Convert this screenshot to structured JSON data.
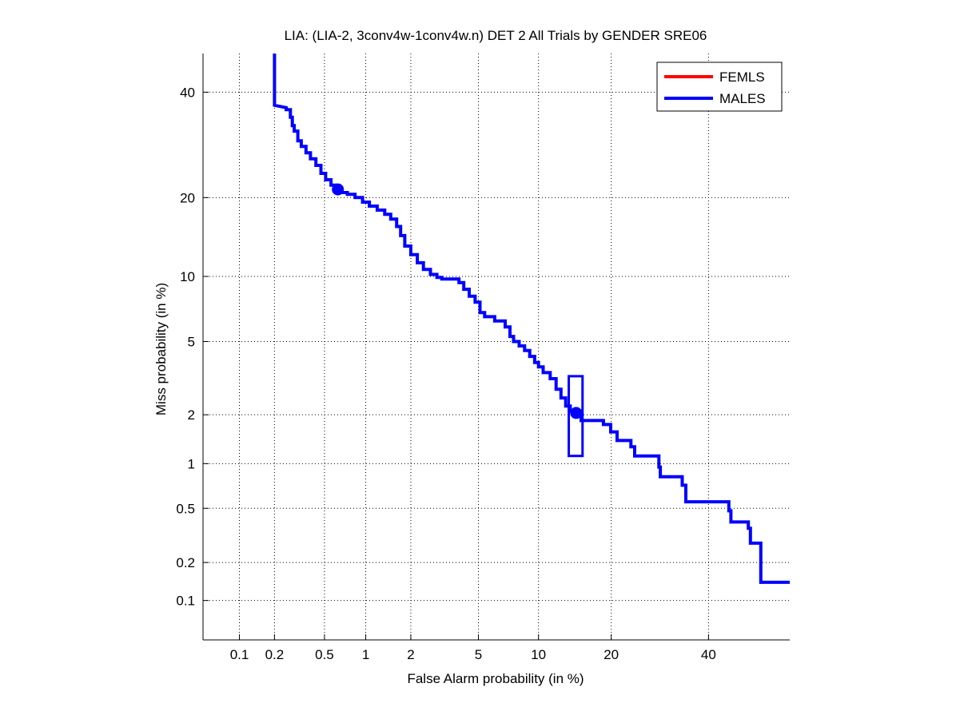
{
  "chart_data": {
    "type": "line",
    "title": "LIA: (LIA-2, 3conv4w-1conv4w.n) DET 2 All Trials by GENDER SRE06",
    "xlabel": "False Alarm probability (in %)",
    "ylabel": "Miss probability (in %)",
    "xscale": "normal-deviate",
    "yscale": "normal-deviate",
    "xlim": [
      0.0466,
      59.4
    ],
    "ylim": [
      0.0466,
      48.5
    ],
    "x_ticks": [
      0.1,
      0.2,
      0.5,
      1,
      2,
      5,
      10,
      20,
      40
    ],
    "x_tick_labels": [
      "0.1",
      "0.2",
      "0.5",
      "1",
      "2",
      "5",
      "10",
      "20",
      "40"
    ],
    "y_ticks": [
      0.1,
      0.2,
      0.5,
      1,
      2,
      5,
      10,
      20,
      40
    ],
    "y_tick_labels": [
      "0.1",
      "0.2",
      "0.5",
      "1",
      "2",
      "5",
      "10",
      "20",
      "40"
    ],
    "grid": true,
    "legend_position": "top-right",
    "series": [
      {
        "name": "FEMLS",
        "color": "#ff0000",
        "points": []
      },
      {
        "name": "MALES",
        "color": "#0000ff",
        "points": [
          [
            0.2,
            48.5
          ],
          [
            0.2,
            37.2
          ],
          [
            0.25,
            36.7
          ],
          [
            0.25,
            36.3
          ],
          [
            0.27,
            36.3
          ],
          [
            0.27,
            34.7
          ],
          [
            0.28,
            34.7
          ],
          [
            0.28,
            33.0
          ],
          [
            0.29,
            33.0
          ],
          [
            0.29,
            31.9
          ],
          [
            0.31,
            31.9
          ],
          [
            0.31,
            30.0
          ],
          [
            0.33,
            30.0
          ],
          [
            0.33,
            28.9
          ],
          [
            0.36,
            28.9
          ],
          [
            0.36,
            27.7
          ],
          [
            0.39,
            27.7
          ],
          [
            0.39,
            26.6
          ],
          [
            0.43,
            26.6
          ],
          [
            0.43,
            25.4
          ],
          [
            0.47,
            25.4
          ],
          [
            0.47,
            24.0
          ],
          [
            0.51,
            24.0
          ],
          [
            0.51,
            22.9
          ],
          [
            0.56,
            22.9
          ],
          [
            0.56,
            22.0
          ],
          [
            0.61,
            22.0
          ],
          [
            0.61,
            21.3
          ],
          [
            0.67,
            21.3
          ],
          [
            0.67,
            20.8
          ],
          [
            0.74,
            20.8
          ],
          [
            0.74,
            20.5
          ],
          [
            0.84,
            20.5
          ],
          [
            0.84,
            20.0
          ],
          [
            0.95,
            20.0
          ],
          [
            0.95,
            19.3
          ],
          [
            1.06,
            19.3
          ],
          [
            1.06,
            18.7
          ],
          [
            1.2,
            18.7
          ],
          [
            1.2,
            18.1
          ],
          [
            1.35,
            18.1
          ],
          [
            1.35,
            17.5
          ],
          [
            1.48,
            17.5
          ],
          [
            1.48,
            16.8
          ],
          [
            1.62,
            16.8
          ],
          [
            1.62,
            15.8
          ],
          [
            1.72,
            15.8
          ],
          [
            1.72,
            14.6
          ],
          [
            1.83,
            14.6
          ],
          [
            1.83,
            13.3
          ],
          [
            2.0,
            13.3
          ],
          [
            2.0,
            12.3
          ],
          [
            2.2,
            12.3
          ],
          [
            2.2,
            11.4
          ],
          [
            2.4,
            11.4
          ],
          [
            2.4,
            10.7
          ],
          [
            2.65,
            10.7
          ],
          [
            2.65,
            10.2
          ],
          [
            2.9,
            10.2
          ],
          [
            2.9,
            9.9
          ],
          [
            3.1,
            9.9
          ],
          [
            3.1,
            9.75
          ],
          [
            3.9,
            9.75
          ],
          [
            3.9,
            9.4
          ],
          [
            4.15,
            9.4
          ],
          [
            4.15,
            8.8
          ],
          [
            4.45,
            8.8
          ],
          [
            4.45,
            8.2
          ],
          [
            4.8,
            8.2
          ],
          [
            4.8,
            7.7
          ],
          [
            5.1,
            7.7
          ],
          [
            5.1,
            6.9
          ],
          [
            5.4,
            6.9
          ],
          [
            5.4,
            6.6
          ],
          [
            6.1,
            6.6
          ],
          [
            6.1,
            6.3
          ],
          [
            6.9,
            6.3
          ],
          [
            6.9,
            5.9
          ],
          [
            7.3,
            5.9
          ],
          [
            7.3,
            5.3
          ],
          [
            7.6,
            5.3
          ],
          [
            7.6,
            5.0
          ],
          [
            8.1,
            5.0
          ],
          [
            8.1,
            4.75
          ],
          [
            8.6,
            4.75
          ],
          [
            8.6,
            4.5
          ],
          [
            9.1,
            4.5
          ],
          [
            9.1,
            4.2
          ],
          [
            9.6,
            4.2
          ],
          [
            9.6,
            3.9
          ],
          [
            10.0,
            3.9
          ],
          [
            10.0,
            3.7
          ],
          [
            10.5,
            3.7
          ],
          [
            10.5,
            3.45
          ],
          [
            11.3,
            3.45
          ],
          [
            11.3,
            3.2
          ],
          [
            12.0,
            3.2
          ],
          [
            12.0,
            2.8
          ],
          [
            12.6,
            2.8
          ],
          [
            12.6,
            2.5
          ],
          [
            13.2,
            2.5
          ],
          [
            13.2,
            2.25
          ],
          [
            13.8,
            2.25
          ],
          [
            13.8,
            2.1
          ],
          [
            14.2,
            2.1
          ],
          [
            14.2,
            2.0
          ],
          [
            14.8,
            2.0
          ],
          [
            14.8,
            2.1
          ],
          [
            15.3,
            2.1
          ],
          [
            15.3,
            1.85
          ],
          [
            18.7,
            1.85
          ],
          [
            18.7,
            1.75
          ],
          [
            19.9,
            1.75
          ],
          [
            19.9,
            1.58
          ],
          [
            21.0,
            1.58
          ],
          [
            21.0,
            1.4
          ],
          [
            23.5,
            1.4
          ],
          [
            23.5,
            1.28
          ],
          [
            24.2,
            1.28
          ],
          [
            24.2,
            1.12
          ],
          [
            29.0,
            1.12
          ],
          [
            29.0,
            0.95
          ],
          [
            29.3,
            0.95
          ],
          [
            29.3,
            0.82
          ],
          [
            34.0,
            0.82
          ],
          [
            34.0,
            0.72
          ],
          [
            34.8,
            0.72
          ],
          [
            34.8,
            0.555
          ],
          [
            44.8,
            0.555
          ],
          [
            44.8,
            0.48
          ],
          [
            45.3,
            0.48
          ],
          [
            45.3,
            0.4
          ],
          [
            49.5,
            0.4
          ],
          [
            49.5,
            0.36
          ],
          [
            50.0,
            0.36
          ],
          [
            50.0,
            0.28
          ],
          [
            52.5,
            0.28
          ],
          [
            52.5,
            0.14
          ],
          [
            59.4,
            0.14
          ]
        ]
      }
    ],
    "operating_points": [
      {
        "x": 0.63,
        "y": 21.3
      },
      {
        "x": 14.6,
        "y": 2.05
      }
    ],
    "confidence_box": {
      "x_range": [
        13.6,
        15.5
      ],
      "y_range": [
        1.12,
        3.3
      ]
    }
  }
}
